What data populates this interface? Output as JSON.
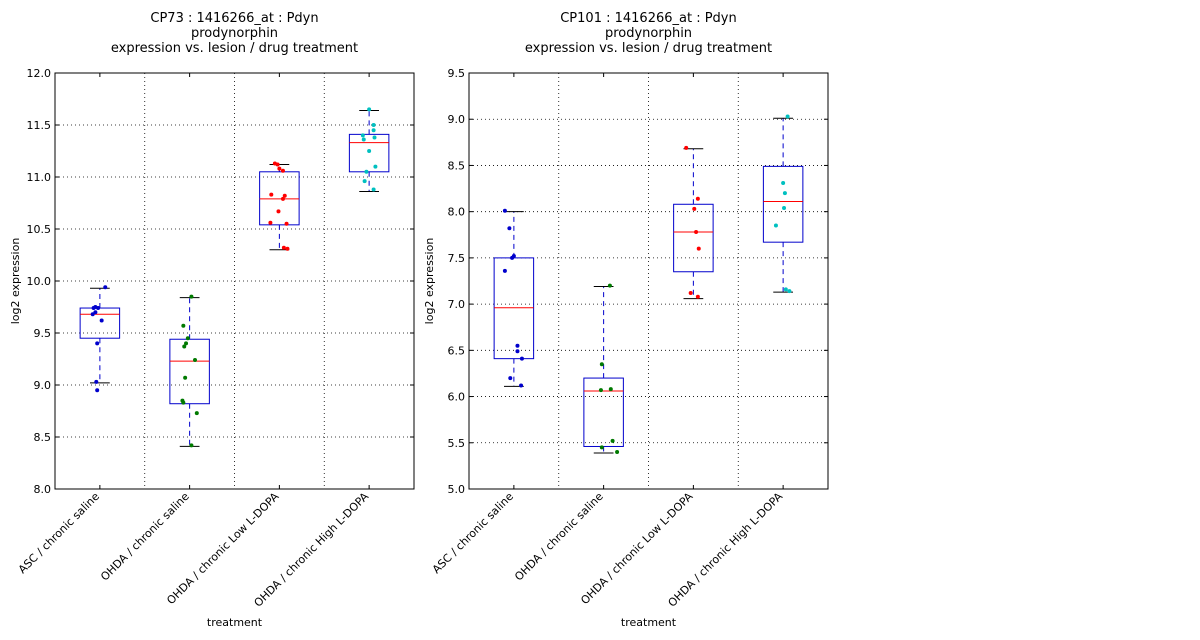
{
  "chart_data": [
    {
      "type": "box",
      "title_lines": [
        "CP73 : 1416266_at : Pdyn",
        "prodynorphin",
        "expression vs. lesion / drug treatment"
      ],
      "xlabel": "treatment",
      "ylabel": "log2 expression",
      "ylim": [
        8.0,
        12.0
      ],
      "yticks": [
        "8.0",
        "8.5",
        "9.0",
        "9.5",
        "10.0",
        "10.5",
        "11.0",
        "11.5",
        "12.0"
      ],
      "grid": true,
      "categories": [
        "ASC / chronic saline",
        "OHDA / chronic saline",
        "OHDA / chronic Low L-DOPA",
        "OHDA / chronic High L-DOPA"
      ],
      "boxes": [
        {
          "category": "ASC / chronic saline",
          "whisker_low": 9.02,
          "q1": 9.45,
          "median": 9.68,
          "q3": 9.74,
          "whisker_high": 9.93,
          "point_color": "#0000cc",
          "points": [
            [
              0.06,
              9.94
            ],
            [
              -0.05,
              9.75
            ],
            [
              -0.02,
              9.74
            ],
            [
              -0.07,
              9.74
            ],
            [
              -0.08,
              9.68
            ],
            [
              -0.05,
              9.7
            ],
            [
              0.02,
              9.62
            ],
            [
              -0.03,
              9.4
            ],
            [
              -0.04,
              9.03
            ],
            [
              -0.03,
              8.95
            ]
          ]
        },
        {
          "category": "OHDA / chronic saline",
          "whisker_low": 8.41,
          "q1": 8.82,
          "median": 9.23,
          "q3": 9.44,
          "whisker_high": 9.84,
          "point_color": "#007a00",
          "points": [
            [
              0.02,
              9.85
            ],
            [
              -0.07,
              9.57
            ],
            [
              -0.02,
              9.45
            ],
            [
              -0.04,
              9.4
            ],
            [
              -0.06,
              9.37
            ],
            [
              0.06,
              9.24
            ],
            [
              -0.05,
              9.07
            ],
            [
              -0.08,
              8.85
            ],
            [
              -0.07,
              8.83
            ],
            [
              0.08,
              8.73
            ],
            [
              0.02,
              8.42
            ]
          ]
        },
        {
          "category": "OHDA / chronic Low L-DOPA",
          "whisker_low": 10.3,
          "q1": 10.54,
          "median": 10.79,
          "q3": 11.05,
          "whisker_high": 11.12,
          "point_color": "#ff0000",
          "points": [
            [
              -0.05,
              11.13
            ],
            [
              -0.02,
              11.12
            ],
            [
              0.0,
              11.08
            ],
            [
              0.04,
              11.06
            ],
            [
              -0.09,
              10.83
            ],
            [
              0.06,
              10.82
            ],
            [
              0.04,
              10.79
            ],
            [
              -0.01,
              10.67
            ],
            [
              -0.1,
              10.56
            ],
            [
              0.08,
              10.55
            ],
            [
              0.05,
              10.32
            ],
            [
              0.09,
              10.31
            ]
          ]
        },
        {
          "category": "OHDA / chronic High L-DOPA",
          "whisker_low": 10.86,
          "q1": 11.05,
          "median": 11.33,
          "q3": 11.41,
          "whisker_high": 11.64,
          "point_color": "#00c0c0",
          "points": [
            [
              0.0,
              11.65
            ],
            [
              0.05,
              11.5
            ],
            [
              0.05,
              11.45
            ],
            [
              -0.07,
              11.4
            ],
            [
              0.06,
              11.38
            ],
            [
              -0.06,
              11.36
            ],
            [
              0.0,
              11.25
            ],
            [
              0.07,
              11.1
            ],
            [
              -0.03,
              11.05
            ],
            [
              -0.05,
              10.96
            ],
            [
              0.05,
              10.88
            ]
          ]
        }
      ]
    },
    {
      "type": "box",
      "title_lines": [
        "CP101 : 1416266_at : Pdyn",
        "prodynorphin",
        "expression vs. lesion / drug treatment"
      ],
      "xlabel": "treatment",
      "ylabel": "log2 expression",
      "ylim": [
        5.0,
        9.5
      ],
      "yticks": [
        "5.0",
        "5.5",
        "6.0",
        "6.5",
        "7.0",
        "7.5",
        "8.0",
        "8.5",
        "9.0",
        "9.5"
      ],
      "grid": true,
      "categories": [
        "ASC / chronic saline",
        "OHDA / chronic saline",
        "OHDA / chronic Low L-DOPA",
        "OHDA / chronic High L-DOPA"
      ],
      "boxes": [
        {
          "category": "ASC / chronic saline",
          "whisker_low": 6.11,
          "q1": 6.41,
          "median": 6.96,
          "q3": 7.5,
          "whisker_high": 8.0,
          "point_color": "#0000cc",
          "points": [
            [
              -0.1,
              8.01
            ],
            [
              -0.05,
              7.82
            ],
            [
              0.0,
              7.52
            ],
            [
              -0.02,
              7.5
            ],
            [
              -0.1,
              7.36
            ],
            [
              0.04,
              6.55
            ],
            [
              0.04,
              6.49
            ],
            [
              0.09,
              6.41
            ],
            [
              -0.04,
              6.2
            ],
            [
              0.08,
              6.12
            ]
          ]
        },
        {
          "category": "OHDA / chronic saline",
          "whisker_low": 5.39,
          "q1": 5.46,
          "median": 6.06,
          "q3": 6.2,
          "whisker_high": 7.19,
          "point_color": "#007a00",
          "points": [
            [
              0.07,
              7.2
            ],
            [
              -0.02,
              6.35
            ],
            [
              -0.03,
              6.07
            ],
            [
              0.08,
              6.08
            ],
            [
              0.1,
              5.52
            ],
            [
              -0.02,
              5.45
            ],
            [
              0.15,
              5.4
            ]
          ]
        },
        {
          "category": "OHDA / chronic Low L-DOPA",
          "whisker_low": 7.06,
          "q1": 7.35,
          "median": 7.78,
          "q3": 8.08,
          "whisker_high": 8.68,
          "point_color": "#ff0000",
          "points": [
            [
              -0.08,
              8.69
            ],
            [
              0.05,
              8.14
            ],
            [
              0.01,
              8.03
            ],
            [
              0.03,
              7.78
            ],
            [
              0.06,
              7.6
            ],
            [
              -0.03,
              7.12
            ],
            [
              0.05,
              7.08
            ]
          ]
        },
        {
          "category": "OHDA / chronic High L-DOPA",
          "whisker_low": 7.13,
          "q1": 7.67,
          "median": 8.11,
          "q3": 8.49,
          "whisker_high": 9.01,
          "point_color": "#00c0c0",
          "points": [
            [
              0.05,
              9.03
            ],
            [
              0.0,
              8.31
            ],
            [
              0.02,
              8.2
            ],
            [
              0.01,
              8.04
            ],
            [
              -0.08,
              7.85
            ],
            [
              0.03,
              7.16
            ],
            [
              0.07,
              7.14
            ]
          ]
        }
      ]
    }
  ],
  "style": {
    "box_color": "#0000cc",
    "median_color": "#ff0000",
    "whisker_color": "#0000cc",
    "cap_color": "#000000",
    "grid_color": "#000000",
    "axis_color": "#000000"
  }
}
